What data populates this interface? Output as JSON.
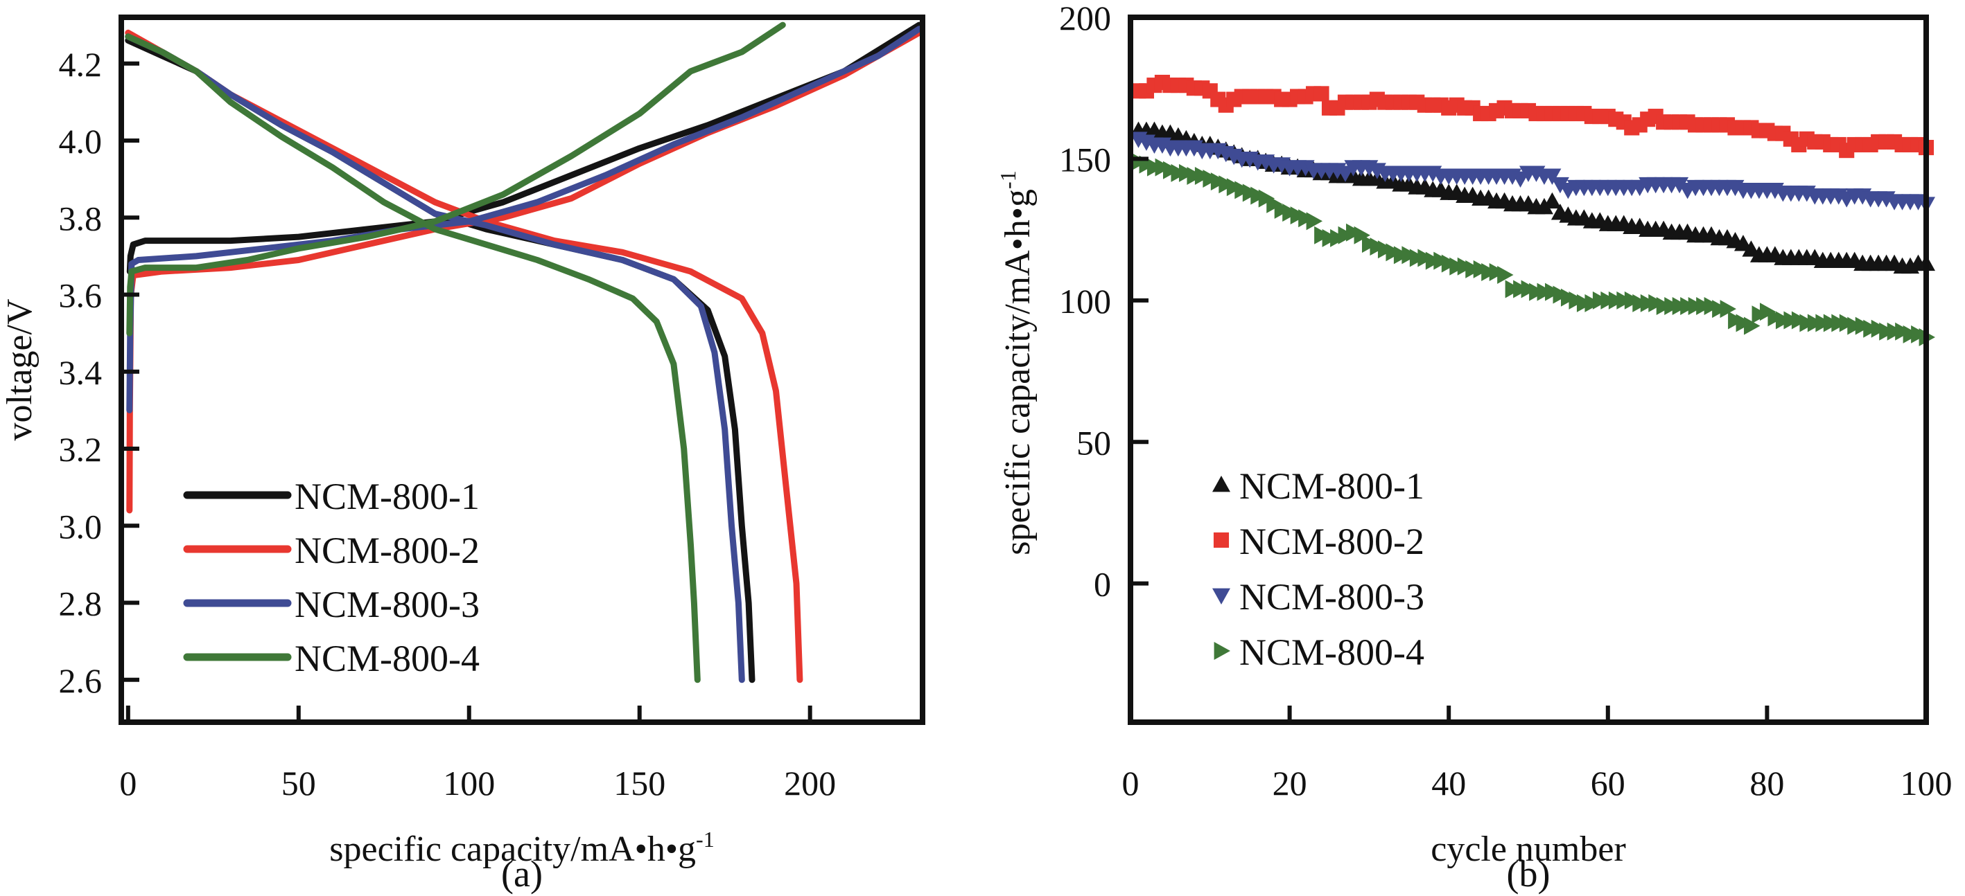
{
  "figure": {
    "panels": [
      "(a)",
      "(b)"
    ]
  },
  "chart_data": [
    {
      "type": "line",
      "panel_label": "(a)",
      "title": "",
      "xlabel": "specific capacity/mA•h•g",
      "xlabel_superscript": "-1",
      "ylabel": "voltage/V",
      "xlim": [
        -2,
        233
      ],
      "ylim": [
        2.49,
        4.32
      ],
      "xticks": [
        0,
        50,
        100,
        150,
        200
      ],
      "xtick_labels": [
        "0",
        "50",
        "100",
        "150",
        "200"
      ],
      "yticks": [
        2.6,
        2.8,
        3.0,
        3.2,
        3.4,
        3.6,
        3.8,
        4.0,
        4.2
      ],
      "ytick_labels": [
        "2.6",
        "2.8",
        "3.0",
        "3.2",
        "3.4",
        "3.6",
        "3.8",
        "4.0",
        "4.2"
      ],
      "grid": false,
      "legend_position": "bottom-left",
      "series": [
        {
          "name": "NCM-800-1",
          "color": "#141414",
          "charge": [
            [
              0.5,
              3.66
            ],
            [
              0.7,
              3.7
            ],
            [
              1.5,
              3.73
            ],
            [
              5,
              3.74
            ],
            [
              30,
              3.74
            ],
            [
              50,
              3.75
            ],
            [
              70,
              3.77
            ],
            [
              90,
              3.79
            ],
            [
              110,
              3.84
            ],
            [
              130,
              3.91
            ],
            [
              150,
              3.98
            ],
            [
              170,
              4.04
            ],
            [
              190,
              4.11
            ],
            [
              210,
              4.18
            ],
            [
              232,
              4.3
            ]
          ],
          "discharge": [
            [
              0,
              4.26
            ],
            [
              10,
              4.22
            ],
            [
              20,
              4.18
            ],
            [
              30,
              4.12
            ],
            [
              45,
              4.04
            ],
            [
              60,
              3.97
            ],
            [
              75,
              3.89
            ],
            [
              90,
              3.81
            ],
            [
              105,
              3.77
            ],
            [
              125,
              3.73
            ],
            [
              145,
              3.69
            ],
            [
              160,
              3.64
            ],
            [
              170,
              3.56
            ],
            [
              175,
              3.44
            ],
            [
              178,
              3.25
            ],
            [
              180,
              3.0
            ],
            [
              182,
              2.8
            ],
            [
              183,
              2.6
            ]
          ]
        },
        {
          "name": "NCM-800-2",
          "color": "#e8372f",
          "charge": [
            [
              0.4,
              3.04
            ],
            [
              0.5,
              3.3
            ],
            [
              0.8,
              3.6
            ],
            [
              1.5,
              3.65
            ],
            [
              10,
              3.66
            ],
            [
              30,
              3.67
            ],
            [
              50,
              3.69
            ],
            [
              70,
              3.73
            ],
            [
              90,
              3.77
            ],
            [
              110,
              3.8
            ],
            [
              130,
              3.85
            ],
            [
              150,
              3.94
            ],
            [
              170,
              4.02
            ],
            [
              190,
              4.09
            ],
            [
              210,
              4.17
            ],
            [
              232,
              4.28
            ]
          ],
          "discharge": [
            [
              0,
              4.28
            ],
            [
              10,
              4.23
            ],
            [
              20,
              4.18
            ],
            [
              30,
              4.12
            ],
            [
              45,
              4.05
            ],
            [
              60,
              3.98
            ],
            [
              75,
              3.91
            ],
            [
              90,
              3.84
            ],
            [
              105,
              3.79
            ],
            [
              125,
              3.74
            ],
            [
              145,
              3.71
            ],
            [
              165,
              3.66
            ],
            [
              180,
              3.59
            ],
            [
              186,
              3.5
            ],
            [
              190,
              3.35
            ],
            [
              193,
              3.1
            ],
            [
              196,
              2.85
            ],
            [
              197,
              2.6
            ]
          ]
        },
        {
          "name": "NCM-800-3",
          "color": "#3f4b94",
          "charge": [
            [
              0.4,
              3.3
            ],
            [
              0.6,
              3.5
            ],
            [
              1,
              3.68
            ],
            [
              3,
              3.69
            ],
            [
              20,
              3.7
            ],
            [
              40,
              3.72
            ],
            [
              60,
              3.74
            ],
            [
              80,
              3.77
            ],
            [
              100,
              3.79
            ],
            [
              120,
              3.84
            ],
            [
              140,
              3.91
            ],
            [
              160,
              3.99
            ],
            [
              180,
              4.06
            ],
            [
              200,
              4.14
            ],
            [
              220,
              4.22
            ],
            [
              232,
              4.29
            ]
          ],
          "discharge": [
            [
              0,
              4.27
            ],
            [
              10,
              4.23
            ],
            [
              20,
              4.18
            ],
            [
              30,
              4.12
            ],
            [
              45,
              4.04
            ],
            [
              60,
              3.97
            ],
            [
              75,
              3.89
            ],
            [
              90,
              3.81
            ],
            [
              105,
              3.78
            ],
            [
              125,
              3.73
            ],
            [
              145,
              3.69
            ],
            [
              160,
              3.64
            ],
            [
              168,
              3.57
            ],
            [
              172,
              3.45
            ],
            [
              175,
              3.25
            ],
            [
              177,
              3.0
            ],
            [
              179,
              2.8
            ],
            [
              180,
              2.6
            ]
          ]
        },
        {
          "name": "NCM-800-4",
          "color": "#3f7838",
          "charge": [
            [
              0.4,
              3.5
            ],
            [
              0.6,
              3.62
            ],
            [
              1,
              3.66
            ],
            [
              5,
              3.67
            ],
            [
              20,
              3.67
            ],
            [
              35,
              3.69
            ],
            [
              50,
              3.72
            ],
            [
              70,
              3.75
            ],
            [
              90,
              3.79
            ],
            [
              110,
              3.86
            ],
            [
              130,
              3.96
            ],
            [
              150,
              4.07
            ],
            [
              165,
              4.18
            ],
            [
              180,
              4.23
            ],
            [
              192,
              4.3
            ]
          ],
          "discharge": [
            [
              0,
              4.27
            ],
            [
              10,
              4.23
            ],
            [
              20,
              4.18
            ],
            [
              30,
              4.1
            ],
            [
              45,
              4.01
            ],
            [
              60,
              3.93
            ],
            [
              75,
              3.84
            ],
            [
              90,
              3.77
            ],
            [
              105,
              3.73
            ],
            [
              120,
              3.69
            ],
            [
              135,
              3.64
            ],
            [
              148,
              3.59
            ],
            [
              155,
              3.53
            ],
            [
              160,
              3.42
            ],
            [
              163,
              3.2
            ],
            [
              165,
              2.95
            ],
            [
              166,
              2.8
            ],
            [
              167,
              2.6
            ]
          ]
        }
      ]
    },
    {
      "type": "scatter",
      "panel_label": "(b)",
      "title": "",
      "xlabel": "cycle number",
      "ylabel": "specific capacity/mA•h•g",
      "ylabel_superscript": "-1",
      "xlim": [
        0,
        100
      ],
      "ylim": [
        -49,
        200
      ],
      "xticks": [
        0,
        20,
        40,
        60,
        80,
        100
      ],
      "xtick_labels": [
        "0",
        "20",
        "40",
        "60",
        "80",
        "100"
      ],
      "yticks": [
        0,
        50,
        100,
        150,
        200
      ],
      "ytick_labels": [
        "0",
        "50",
        "100",
        "150",
        "200"
      ],
      "grid": false,
      "legend_position": "bottom-left",
      "series": [
        {
          "name": "NCM-800-1",
          "color": "#141414",
          "marker": "triangle-up",
          "x_start": 1,
          "x_step": 1,
          "values": [
            160,
            160,
            160,
            159,
            159,
            158,
            157,
            156,
            155,
            155,
            154,
            153,
            152,
            151,
            150,
            150,
            149,
            148,
            148,
            147,
            147,
            146,
            146,
            145,
            145,
            144,
            144,
            144,
            143,
            143,
            143,
            142,
            142,
            141,
            141,
            140,
            140,
            139,
            139,
            138,
            138,
            137,
            137,
            136,
            136,
            135,
            135,
            134,
            134,
            134,
            133,
            133,
            135,
            131,
            130,
            129,
            129,
            128,
            128,
            127,
            127,
            127,
            126,
            126,
            125,
            125,
            125,
            124,
            124,
            124,
            123,
            123,
            123,
            122,
            122,
            121,
            120,
            118,
            116,
            116,
            116,
            115,
            115,
            115,
            115,
            115,
            114,
            114,
            114,
            114,
            114,
            113,
            113,
            113,
            113,
            113,
            112,
            112,
            113,
            113
          ]
        },
        {
          "name": "NCM-800-2",
          "color": "#e8372f",
          "marker": "square",
          "x_start": 1,
          "x_step": 1,
          "values": [
            174,
            174,
            176,
            177,
            176,
            176,
            176,
            175,
            175,
            174,
            171,
            169,
            171,
            172,
            172,
            172,
            172,
            172,
            171,
            171,
            172,
            172,
            173,
            173,
            168,
            168,
            170,
            170,
            170,
            170,
            171,
            170,
            170,
            170,
            170,
            170,
            169,
            169,
            169,
            168,
            169,
            168,
            168,
            166,
            166,
            167,
            168,
            167,
            167,
            167,
            166,
            166,
            166,
            166,
            166,
            166,
            166,
            165,
            165,
            165,
            164,
            163,
            161,
            162,
            164,
            165,
            163,
            163,
            163,
            163,
            162,
            162,
            162,
            162,
            162,
            161,
            161,
            161,
            160,
            160,
            159,
            159,
            157,
            155,
            157,
            156,
            156,
            155,
            155,
            153,
            155,
            155,
            155,
            156,
            156,
            156,
            155,
            155,
            155,
            154
          ]
        },
        {
          "name": "NCM-800-3",
          "color": "#3f4b94",
          "marker": "triangle-down",
          "x_start": 1,
          "x_step": 1,
          "values": [
            157,
            156,
            155,
            155,
            154,
            154,
            154,
            154,
            153,
            153,
            153,
            152,
            151,
            150,
            150,
            149,
            149,
            148,
            148,
            147,
            147,
            147,
            146,
            146,
            146,
            146,
            145,
            147,
            147,
            147,
            146,
            145,
            145,
            145,
            145,
            145,
            145,
            145,
            144,
            144,
            144,
            144,
            144,
            144,
            144,
            144,
            144,
            144,
            143,
            145,
            145,
            144,
            144,
            141,
            139,
            140,
            140,
            140,
            140,
            140,
            140,
            140,
            140,
            140,
            141,
            141,
            141,
            141,
            141,
            139,
            140,
            140,
            140,
            140,
            140,
            140,
            139,
            139,
            139,
            139,
            139,
            138,
            138,
            138,
            138,
            137,
            137,
            137,
            137,
            136,
            137,
            137,
            136,
            136,
            136,
            135,
            135,
            135,
            135,
            134
          ]
        },
        {
          "name": "NCM-800-4",
          "color": "#3f7838",
          "marker": "triangle-right",
          "x_start": 1,
          "x_step": 1,
          "values": [
            149,
            148,
            147,
            147,
            146,
            145,
            145,
            144,
            144,
            143,
            142,
            141,
            140,
            139,
            138,
            137,
            136,
            134,
            132,
            131,
            130,
            129,
            128,
            123,
            122,
            122,
            123,
            124,
            123,
            120,
            119,
            118,
            117,
            116,
            116,
            115,
            115,
            114,
            114,
            113,
            112,
            112,
            111,
            111,
            110,
            110,
            109,
            104,
            104,
            104,
            103,
            103,
            103,
            102,
            101,
            100,
            99,
            99,
            100,
            100,
            100,
            100,
            100,
            99,
            99,
            99,
            98,
            98,
            98,
            98,
            98,
            98,
            98,
            97,
            97,
            93,
            92,
            91,
            95,
            96,
            94,
            93,
            93,
            93,
            92,
            92,
            92,
            92,
            92,
            92,
            91,
            91,
            90,
            90,
            89,
            89,
            89,
            88,
            88,
            87
          ]
        }
      ]
    }
  ]
}
